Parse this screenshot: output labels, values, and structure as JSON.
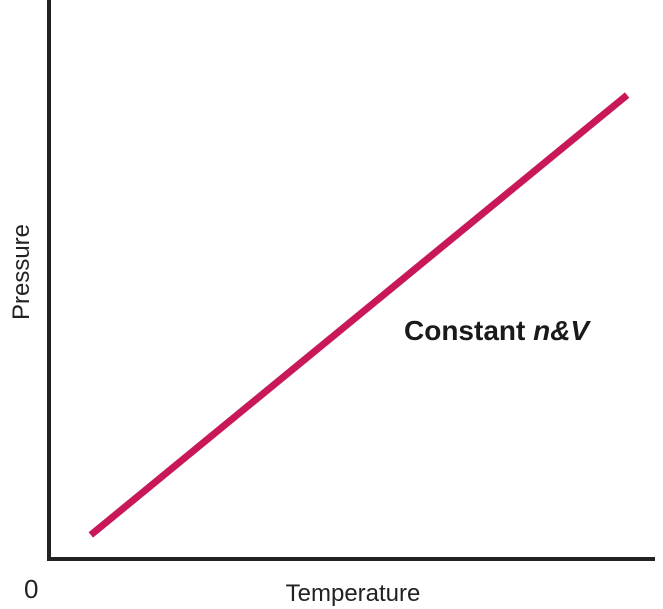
{
  "chart_data": {
    "type": "line",
    "title": "",
    "xlabel": "Temperature",
    "ylabel": "Pressure",
    "origin_label": "0",
    "annotation": {
      "text": "Constant ",
      "italic": "n&V"
    },
    "xlim": [
      0,
      100
    ],
    "ylim": [
      0,
      100
    ],
    "grid": false,
    "series": [
      {
        "name": "Constant n&V",
        "color": "#c8185a",
        "x": [
          6.9,
          95.4
        ],
        "y": [
          4.3,
          83.0
        ]
      }
    ]
  }
}
